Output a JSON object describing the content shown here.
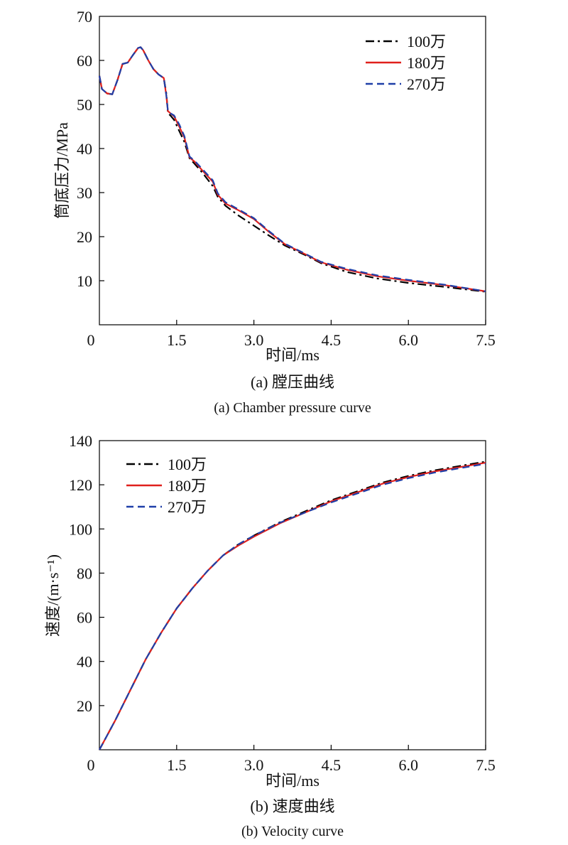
{
  "chart_data": [
    {
      "type": "line",
      "title": "",
      "xlabel": "时间/ms",
      "ylabel": "筒底压力/MPa",
      "caption_cn": "(a) 膛压曲线",
      "caption_en": "(a) Chamber pressure curve",
      "xlim": [
        0,
        7.5
      ],
      "ylim": [
        0,
        70
      ],
      "xticks": [
        "0",
        "1.5",
        "3.0",
        "4.5",
        "6.0",
        "7.5"
      ],
      "yticks": [
        "10",
        "20",
        "30",
        "40",
        "50",
        "60",
        "70"
      ],
      "grid": false,
      "legend_position": "top-right",
      "series": [
        {
          "name": "100万",
          "color": "#000000",
          "dash": "dashdot",
          "x": [
            0,
            0.05,
            0.15,
            0.25,
            0.35,
            0.45,
            0.55,
            0.65,
            0.75,
            0.8,
            0.85,
            0.95,
            1.05,
            1.15,
            1.25,
            1.3,
            1.33,
            1.38,
            1.45,
            1.55,
            1.65,
            1.75,
            1.85,
            2.0,
            2.2,
            2.3,
            2.45,
            2.7,
            3.0,
            3.3,
            3.6,
            4.0,
            4.3,
            4.8,
            5.4,
            6.0,
            6.7,
            7.5
          ],
          "y": [
            56.5,
            53.5,
            52.5,
            52.3,
            55.5,
            59.2,
            59.5,
            61.2,
            62.8,
            63.0,
            62.3,
            60.0,
            58.0,
            56.8,
            56.0,
            52.5,
            48.0,
            47.5,
            46.5,
            44.0,
            41.5,
            37.8,
            36.5,
            34.5,
            31.5,
            29.0,
            27.0,
            24.8,
            22.5,
            20.2,
            18.0,
            15.8,
            14.0,
            12.0,
            10.5,
            9.5,
            8.6,
            7.5
          ]
        },
        {
          "name": "180万",
          "color": "#e0201c",
          "dash": "solid",
          "x": [
            0,
            0.05,
            0.15,
            0.25,
            0.35,
            0.45,
            0.55,
            0.65,
            0.75,
            0.8,
            0.85,
            0.95,
            1.05,
            1.15,
            1.25,
            1.3,
            1.33,
            1.38,
            1.45,
            1.55,
            1.65,
            1.75,
            1.85,
            2.0,
            2.2,
            2.3,
            2.45,
            2.7,
            3.0,
            3.3,
            3.6,
            4.0,
            4.3,
            4.8,
            5.4,
            6.0,
            6.7,
            7.5
          ],
          "y": [
            56.5,
            53.5,
            52.5,
            52.3,
            55.5,
            59.2,
            59.5,
            61.2,
            62.8,
            63.0,
            62.3,
            60.0,
            58.0,
            56.8,
            56.0,
            52.0,
            48.5,
            48.0,
            47.3,
            45.0,
            42.5,
            38.0,
            37.0,
            35.0,
            32.5,
            29.5,
            27.5,
            26.0,
            24.0,
            21.0,
            18.3,
            16.0,
            14.2,
            12.5,
            11.0,
            10.0,
            9.0,
            7.6
          ]
        },
        {
          "name": "270万",
          "color": "#1f3fa8",
          "dash": "dashed",
          "x": [
            0,
            0.05,
            0.15,
            0.25,
            0.35,
            0.45,
            0.55,
            0.65,
            0.75,
            0.8,
            0.85,
            0.95,
            1.05,
            1.15,
            1.25,
            1.3,
            1.33,
            1.38,
            1.45,
            1.55,
            1.65,
            1.75,
            1.85,
            2.0,
            2.2,
            2.3,
            2.45,
            2.7,
            3.0,
            3.3,
            3.6,
            4.0,
            4.3,
            4.8,
            5.4,
            6.0,
            6.7,
            7.5
          ],
          "y": [
            56.5,
            53.5,
            52.5,
            52.3,
            55.5,
            59.2,
            59.5,
            61.2,
            62.8,
            63.0,
            62.3,
            60.0,
            58.0,
            56.8,
            56.0,
            52.0,
            48.5,
            48.0,
            47.5,
            45.5,
            42.8,
            38.2,
            37.2,
            35.3,
            32.8,
            29.8,
            27.8,
            26.2,
            24.2,
            21.2,
            18.4,
            16.1,
            14.3,
            12.7,
            11.2,
            10.2,
            9.1,
            7.6
          ]
        }
      ]
    },
    {
      "type": "line",
      "title": "",
      "xlabel": "时间/ms",
      "ylabel": "速度/(m·s⁻¹)",
      "caption_cn": "(b) 速度曲线",
      "caption_en": "(b) Velocity curve",
      "xlim": [
        0,
        7.5
      ],
      "ylim": [
        0,
        140
      ],
      "xticks": [
        "0",
        "1.5",
        "3.0",
        "4.5",
        "6.0",
        "7.5"
      ],
      "yticks": [
        "20",
        "40",
        "60",
        "80",
        "100",
        "120",
        "140"
      ],
      "grid": false,
      "legend_position": "top-left",
      "series": [
        {
          "name": "100万",
          "color": "#000000",
          "dash": "dashdot",
          "x": [
            0,
            0.3,
            0.6,
            0.9,
            1.2,
            1.5,
            1.8,
            2.1,
            2.4,
            2.7,
            3.0,
            3.5,
            4.0,
            4.5,
            5.0,
            5.5,
            6.0,
            6.5,
            7.0,
            7.5
          ],
          "y": [
            0,
            13,
            27,
            41,
            53,
            64,
            73,
            81,
            88,
            93,
            97,
            103,
            108,
            113,
            117,
            121,
            124,
            126.5,
            128.5,
            130.5
          ]
        },
        {
          "name": "180万",
          "color": "#e0201c",
          "dash": "solid",
          "x": [
            0,
            0.3,
            0.6,
            0.9,
            1.2,
            1.5,
            1.8,
            2.1,
            2.4,
            2.7,
            3.0,
            3.5,
            4.0,
            4.5,
            5.0,
            5.5,
            6.0,
            6.5,
            7.0,
            7.5
          ],
          "y": [
            0,
            13,
            27,
            41,
            53,
            64,
            73,
            81,
            88,
            92.5,
            96.5,
            102.5,
            107.5,
            112.5,
            116.5,
            120.5,
            123.5,
            126,
            128,
            130
          ]
        },
        {
          "name": "270万",
          "color": "#1f3fa8",
          "dash": "dashed",
          "x": [
            0,
            0.3,
            0.6,
            0.9,
            1.2,
            1.5,
            1.8,
            2.1,
            2.4,
            2.7,
            3.0,
            3.5,
            4.0,
            4.5,
            5.0,
            5.5,
            6.0,
            6.5,
            7.0,
            7.5
          ],
          "y": [
            0,
            13,
            27,
            41,
            53,
            64,
            73,
            81,
            88,
            93,
            97,
            102.8,
            107.5,
            112,
            116,
            120,
            123,
            125.5,
            127.5,
            129.5
          ]
        }
      ]
    }
  ]
}
